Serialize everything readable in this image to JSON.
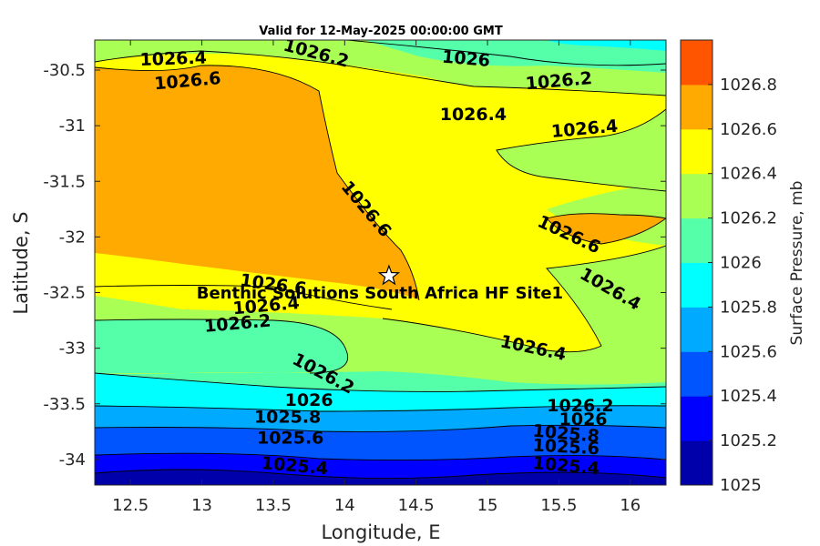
{
  "chart_data": {
    "type": "contour",
    "title": "Valid for 12-May-2025 00:00:00 GMT",
    "xlabel": "Longitude, E",
    "ylabel": "Latitude, S",
    "xlim": [
      12.25,
      16.25
    ],
    "ylim": [
      -34.23,
      -30.23
    ],
    "x_ticks": [
      12.5,
      13,
      13.5,
      14,
      14.5,
      15,
      15.5,
      16
    ],
    "x_tick_labels": [
      "12.5",
      "13",
      "13.5",
      "14",
      "14.5",
      "15",
      "15.5",
      "16"
    ],
    "y_ticks": [
      -30.5,
      -31,
      -31.5,
      -32,
      -32.5,
      -33,
      -33.5,
      -34
    ],
    "y_tick_labels": [
      "-30.5",
      "-31",
      "-31.5",
      "-32",
      "-32.5",
      "-33",
      "-33.5",
      "-34"
    ],
    "colorbar": {
      "label": "Surface Pressure, mb",
      "levels": [
        1025,
        1025.2,
        1025.4,
        1025.6,
        1025.8,
        1026,
        1026.2,
        1026.4,
        1026.6,
        1026.8
      ],
      "tick_labels": [
        "1025",
        "1025.2",
        "1025.4",
        "1025.6",
        "1025.8",
        "1026",
        "1026.2",
        "1026.4",
        "1026.6",
        "1026.8"
      ],
      "colors": [
        "#0000aa",
        "#0000ff",
        "#0055ff",
        "#00aaff",
        "#00ffff",
        "#55ffaa",
        "#aaff55",
        "#ffff00",
        "#ffaa00",
        "#ff5500"
      ]
    },
    "contour_labels": [
      {
        "text": "1026.4",
        "lon": 12.8,
        "lat": -30.4,
        "angle": -2
      },
      {
        "text": "1026.2",
        "lon": 13.8,
        "lat": -30.35,
        "angle": 15
      },
      {
        "text": "1026",
        "lon": 14.85,
        "lat": -30.4,
        "angle": 5
      },
      {
        "text": "1026.6",
        "lon": 12.9,
        "lat": -30.6,
        "angle": -5
      },
      {
        "text": "1026.2",
        "lon": 15.5,
        "lat": -30.6,
        "angle": -5
      },
      {
        "text": "1026.4",
        "lon": 14.9,
        "lat": -30.9,
        "angle": 0
      },
      {
        "text": "1026.4",
        "lon": 15.68,
        "lat": -31.03,
        "angle": -5
      },
      {
        "text": "1026.6",
        "lon": 14.15,
        "lat": -31.75,
        "angle": 50
      },
      {
        "text": "1026.6",
        "lon": 15.57,
        "lat": -31.98,
        "angle": 25
      },
      {
        "text": "1026.4",
        "lon": 15.86,
        "lat": -32.47,
        "angle": 30
      },
      {
        "text": "1026.6",
        "lon": 13.5,
        "lat": -32.43,
        "angle": 8
      },
      {
        "text": "1026.4",
        "lon": 13.45,
        "lat": -32.62,
        "angle": -5
      },
      {
        "text": "1026.2",
        "lon": 13.25,
        "lat": -32.78,
        "angle": -5
      },
      {
        "text": "1026.4",
        "lon": 15.32,
        "lat": -33.0,
        "angle": 12
      },
      {
        "text": "1026.2",
        "lon": 13.85,
        "lat": -33.23,
        "angle": 28
      },
      {
        "text": "1026",
        "lon": 13.75,
        "lat": -33.47,
        "angle": 0
      },
      {
        "text": "1026.2",
        "lon": 15.65,
        "lat": -33.52,
        "angle": 0
      },
      {
        "text": "1025.8",
        "lon": 13.6,
        "lat": -33.62,
        "angle": 0
      },
      {
        "text": "1026",
        "lon": 15.67,
        "lat": -33.64,
        "angle": 0
      },
      {
        "text": "1025.8",
        "lon": 15.55,
        "lat": -33.77,
        "angle": 5
      },
      {
        "text": "1025.6",
        "lon": 13.62,
        "lat": -33.81,
        "angle": 0
      },
      {
        "text": "1025.6",
        "lon": 15.55,
        "lat": -33.89,
        "angle": 3
      },
      {
        "text": "1025.4",
        "lon": 13.65,
        "lat": -34.06,
        "angle": 5
      },
      {
        "text": "1025.4",
        "lon": 15.55,
        "lat": -34.06,
        "angle": 5
      }
    ],
    "site": {
      "label": "Benthic Solutions South Africa HF Site1",
      "lon": 14.31,
      "lat": -32.35,
      "marker": "star"
    }
  }
}
